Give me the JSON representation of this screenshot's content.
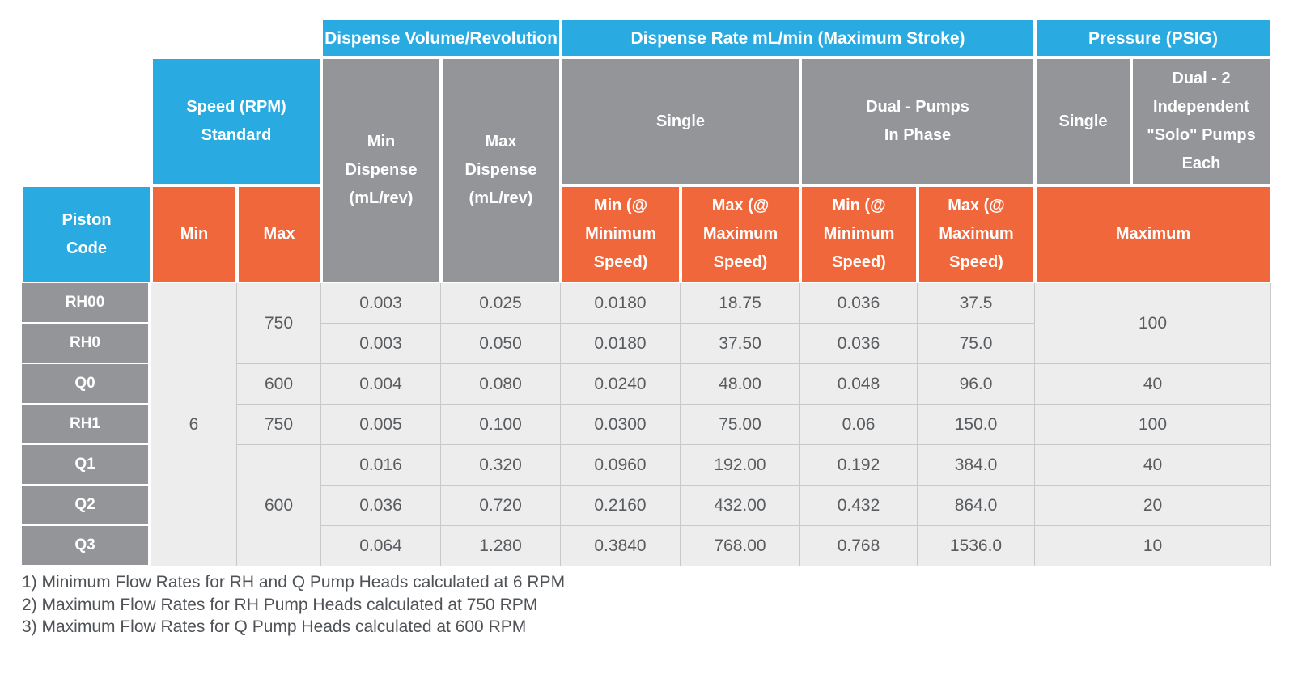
{
  "colors": {
    "cyan": "#29abe2",
    "orange": "#f1673c",
    "header_gray": "#939598",
    "cell_bg": "#ededee",
    "cell_border": "#c8c9cb",
    "value_text": "#595c5f"
  },
  "table": {
    "top": {
      "dispense_volume": "Dispense Volume/Revolution",
      "dispense_rate": "Dispense Rate mL/min (Maximum Stroke)",
      "pressure": "Pressure (PSIG)"
    },
    "groups": {
      "speed": "Speed (RPM)\nStandard",
      "min_dispense": "Min\nDispense\n(mL/rev)",
      "max_dispense": "Max\nDispense\n(mL/rev)",
      "single": "Single",
      "dual_in_phase": "Dual - Pumps\nIn Phase",
      "pressure_single": "Single",
      "pressure_dual": "Dual - 2\nIndependent\n\"Solo\" Pumps\nEach"
    },
    "cols": {
      "piston_code": "Piston\nCode",
      "speed_min": "Min",
      "speed_max": "Max",
      "single_min": "Min (@\nMinimum\nSpeed)",
      "single_max": "Max (@\nMaximum\nSpeed)",
      "dual_min": "Min (@\nMinimum\nSpeed)",
      "dual_max": "Max (@\nMaximum\nSpeed)",
      "pressure_max": "Maximum"
    },
    "speed_min_value": "6",
    "speed_max_groups": [
      {
        "value": "750",
        "row_span": 2
      },
      {
        "value": "600",
        "row_span": 1
      },
      {
        "value": "750",
        "row_span": 1
      },
      {
        "value": "600",
        "row_span": 3
      }
    ],
    "pressure_groups": [
      {
        "value": "100",
        "row_span": 2
      },
      {
        "value": "40",
        "row_span": 1
      },
      {
        "value": "100",
        "row_span": 1
      },
      {
        "value": "40",
        "row_span": 1
      },
      {
        "value": "20",
        "row_span": 1
      },
      {
        "value": "10",
        "row_span": 1
      }
    ],
    "rows": [
      {
        "code": "RH00",
        "min_dispense": "0.003",
        "max_dispense": "0.025",
        "single_min": "0.0180",
        "single_max": "18.75",
        "dual_min": "0.036",
        "dual_max": "37.5"
      },
      {
        "code": "RH0",
        "min_dispense": "0.003",
        "max_dispense": "0.050",
        "single_min": "0.0180",
        "single_max": "37.50",
        "dual_min": "0.036",
        "dual_max": "75.0"
      },
      {
        "code": "Q0",
        "min_dispense": "0.004",
        "max_dispense": "0.080",
        "single_min": "0.0240",
        "single_max": "48.00",
        "dual_min": "0.048",
        "dual_max": "96.0"
      },
      {
        "code": "RH1",
        "min_dispense": "0.005",
        "max_dispense": "0.100",
        "single_min": "0.0300",
        "single_max": "75.00",
        "dual_min": "0.06",
        "dual_max": "150.0"
      },
      {
        "code": "Q1",
        "min_dispense": "0.016",
        "max_dispense": "0.320",
        "single_min": "0.0960",
        "single_max": "192.00",
        "dual_min": "0.192",
        "dual_max": "384.0"
      },
      {
        "code": "Q2",
        "min_dispense": "0.036",
        "max_dispense": "0.720",
        "single_min": "0.2160",
        "single_max": "432.00",
        "dual_min": "0.432",
        "dual_max": "864.0"
      },
      {
        "code": "Q3",
        "min_dispense": "0.064",
        "max_dispense": "1.280",
        "single_min": "0.3840",
        "single_max": "768.00",
        "dual_min": "0.768",
        "dual_max": "1536.0"
      }
    ]
  },
  "footnotes": [
    "1) Minimum Flow Rates for RH and Q Pump Heads calculated at 6 RPM",
    "2) Maximum Flow Rates for RH Pump Heads calculated at 750 RPM",
    "3) Maximum Flow Rates for Q Pump Heads calculated at 600 RPM"
  ]
}
